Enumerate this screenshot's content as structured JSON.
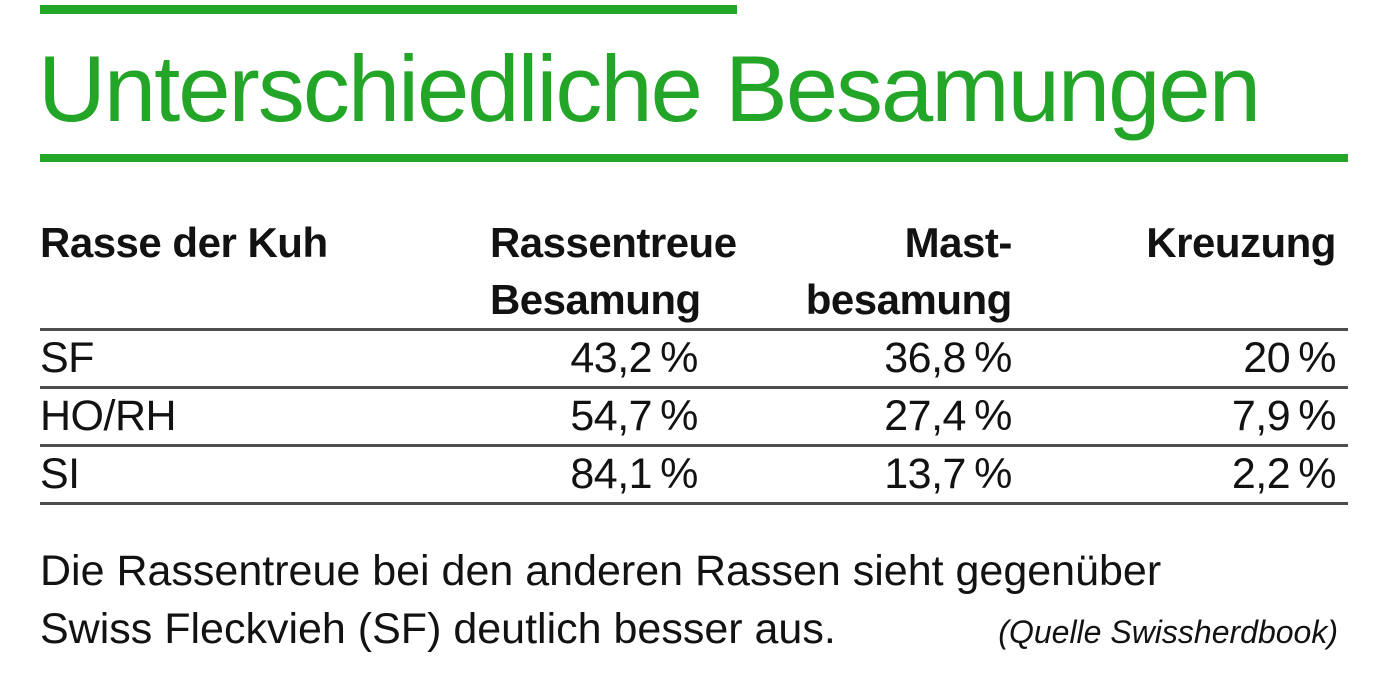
{
  "colors": {
    "green": "#23a528",
    "rule": "#4d4d4d",
    "text": "#121212"
  },
  "title": "Unterschiedliche Besamungen",
  "chart_data": {
    "type": "table",
    "title": "Unterschiedliche Besamungen",
    "columns": [
      "Rasse der Kuh",
      "Rassentreue Besamung",
      "Mast-besamung",
      "Kreuzung"
    ],
    "header_display": [
      "Rasse der Kuh",
      "Rassentreue\nBesamung",
      "Mast-\nbesamung",
      "Kreuzung"
    ],
    "rows": [
      [
        "SF",
        "43,2 %",
        "36,8 %",
        "20 %"
      ],
      [
        "HO/RH",
        "54,7 %",
        "27,4 %",
        "7,9 %"
      ],
      [
        "SI",
        "84,1 %",
        "13,7 %",
        "2,2 %"
      ]
    ],
    "values_percent": {
      "SF": {
        "rassentreue_besamung": 43.2,
        "mastbesamung": 36.8,
        "kreuzung": 20.0
      },
      "HO/RH": {
        "rassentreue_besamung": 54.7,
        "mastbesamung": 27.4,
        "kreuzung": 7.9
      },
      "SI": {
        "rassentreue_besamung": 84.1,
        "mastbesamung": 13.7,
        "kreuzung": 2.2
      }
    },
    "note_lines": [
      "Die Rassentreue bei den anderen Rassen sieht gegenüber",
      "Swiss Fleckvieh (SF) deutlich besser aus."
    ],
    "source": "(Quelle Swissherdbook)"
  }
}
